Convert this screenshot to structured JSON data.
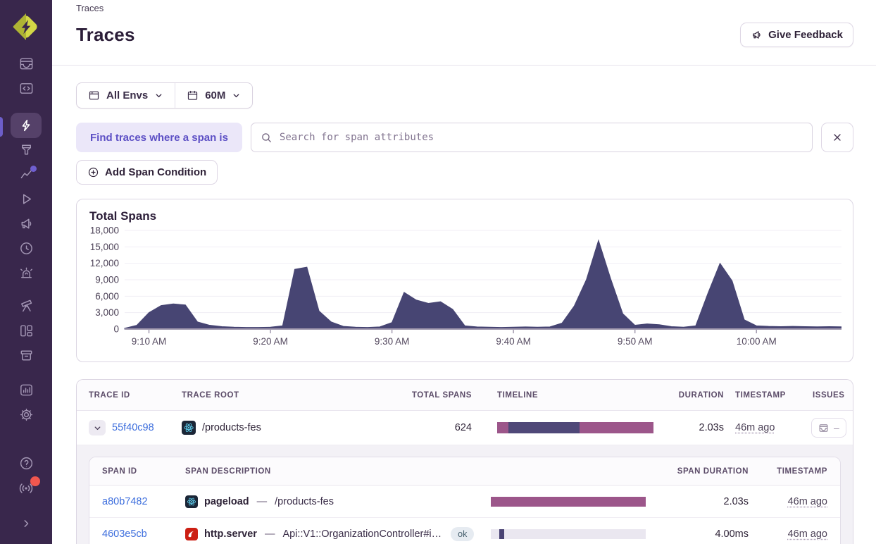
{
  "colors": {
    "sidebar_bg": "#39274c",
    "accent_purple": "#6d5ec9",
    "link_blue": "#3d6edd",
    "timeline_pink": "#9c568a",
    "timeline_dark": "#4f4878",
    "chart_fill": "#474573",
    "notification_red": "#f1574f"
  },
  "sidebar": {
    "icons": [
      "sentry-logo",
      "issues",
      "projects",
      "traces",
      "insights",
      "performance",
      "replays",
      "feedback",
      "crons",
      "alerts",
      "discover",
      "dashboards",
      "releases",
      "stats",
      "settings",
      "help",
      "broadcasts",
      "collapse"
    ],
    "active": "traces"
  },
  "breadcrumb": {
    "label": "Traces"
  },
  "header": {
    "title": "Traces",
    "feedback_label": "Give Feedback"
  },
  "filters": {
    "env_label": "All Envs",
    "period_label": "60M"
  },
  "query_builder": {
    "pill_label": "Find traces where a span is",
    "search_placeholder": "Search for span attributes",
    "add_condition_label": "Add Span Condition"
  },
  "chart_data": {
    "type": "area",
    "title": "Total Spans",
    "x_start": "9:08 AM",
    "x_step_minutes": 1,
    "values": [
      150,
      700,
      3000,
      4300,
      4600,
      4400,
      1300,
      700,
      450,
      350,
      300,
      300,
      350,
      600,
      10900,
      11300,
      3300,
      1300,
      500,
      350,
      300,
      400,
      1200,
      6700,
      5300,
      4700,
      5000,
      3600,
      600,
      400,
      350,
      300,
      350,
      400,
      350,
      400,
      1100,
      4200,
      9000,
      16200,
      9200,
      2800,
      700,
      950,
      800,
      450,
      350,
      600,
      6500,
      12000,
      8800,
      1700,
      600,
      500,
      450,
      500,
      450,
      420,
      450,
      420
    ],
    "x_ticks": [
      {
        "index": 2,
        "label": "9:10 AM"
      },
      {
        "index": 12,
        "label": "9:20 AM"
      },
      {
        "index": 22,
        "label": "9:30 AM"
      },
      {
        "index": 32,
        "label": "9:40 AM"
      },
      {
        "index": 42,
        "label": "9:50 AM"
      },
      {
        "index": 52,
        "label": "10:00 AM"
      }
    ],
    "y_ticks": [
      {
        "value": 0,
        "label": "0"
      },
      {
        "value": 3000,
        "label": "3,000"
      },
      {
        "value": 6000,
        "label": "6,000"
      },
      {
        "value": 9000,
        "label": "9,000"
      },
      {
        "value": 12000,
        "label": "12,000"
      },
      {
        "value": 15000,
        "label": "15,000"
      },
      {
        "value": 18000,
        "label": "18,000"
      }
    ],
    "ylim": [
      0,
      18000
    ],
    "fill_color": "#474573",
    "grid": "horizontal",
    "legend": "none"
  },
  "traces_table": {
    "columns": [
      "TRACE ID",
      "TRACE ROOT",
      "TOTAL SPANS",
      "TIMELINE",
      "DURATION",
      "TIMESTAMP",
      "ISSUES"
    ],
    "row": {
      "trace_id": "55f40c98",
      "platform": "react",
      "trace_root": "/products-fes",
      "total_spans": "624",
      "duration": "2.03s",
      "timestamp": "46m ago",
      "issues_value": "–",
      "timeline_segments": [
        {
          "color": "#9c568a",
          "width_pct": 7
        },
        {
          "color": "#4f4878",
          "width_pct": 45.5
        },
        {
          "color": "#9c568a",
          "width_pct": 47.5
        }
      ]
    },
    "spans": {
      "columns": [
        "SPAN ID",
        "SPAN DESCRIPTION",
        "SPAN DURATION",
        "TIMESTAMP"
      ],
      "rows": [
        {
          "span_id": "a80b7482",
          "platform": "react",
          "op": "pageload",
          "sep": "—",
          "description": "/products-fes",
          "status": "",
          "duration": "2.03s",
          "timestamp": "46m ago",
          "bar": {
            "left_pct": 0,
            "width_pct": 100,
            "color": "#9c568a"
          }
        },
        {
          "span_id": "4603e5cb",
          "platform": "ruby",
          "op": "http.server",
          "sep": "—",
          "description": "Api::V1::OrganizationController#i…",
          "status": "ok",
          "duration": "4.00ms",
          "timestamp": "46m ago",
          "bar": {
            "left_pct": 5.5,
            "width_pct": 3,
            "color": "#4a4373"
          }
        }
      ]
    }
  }
}
